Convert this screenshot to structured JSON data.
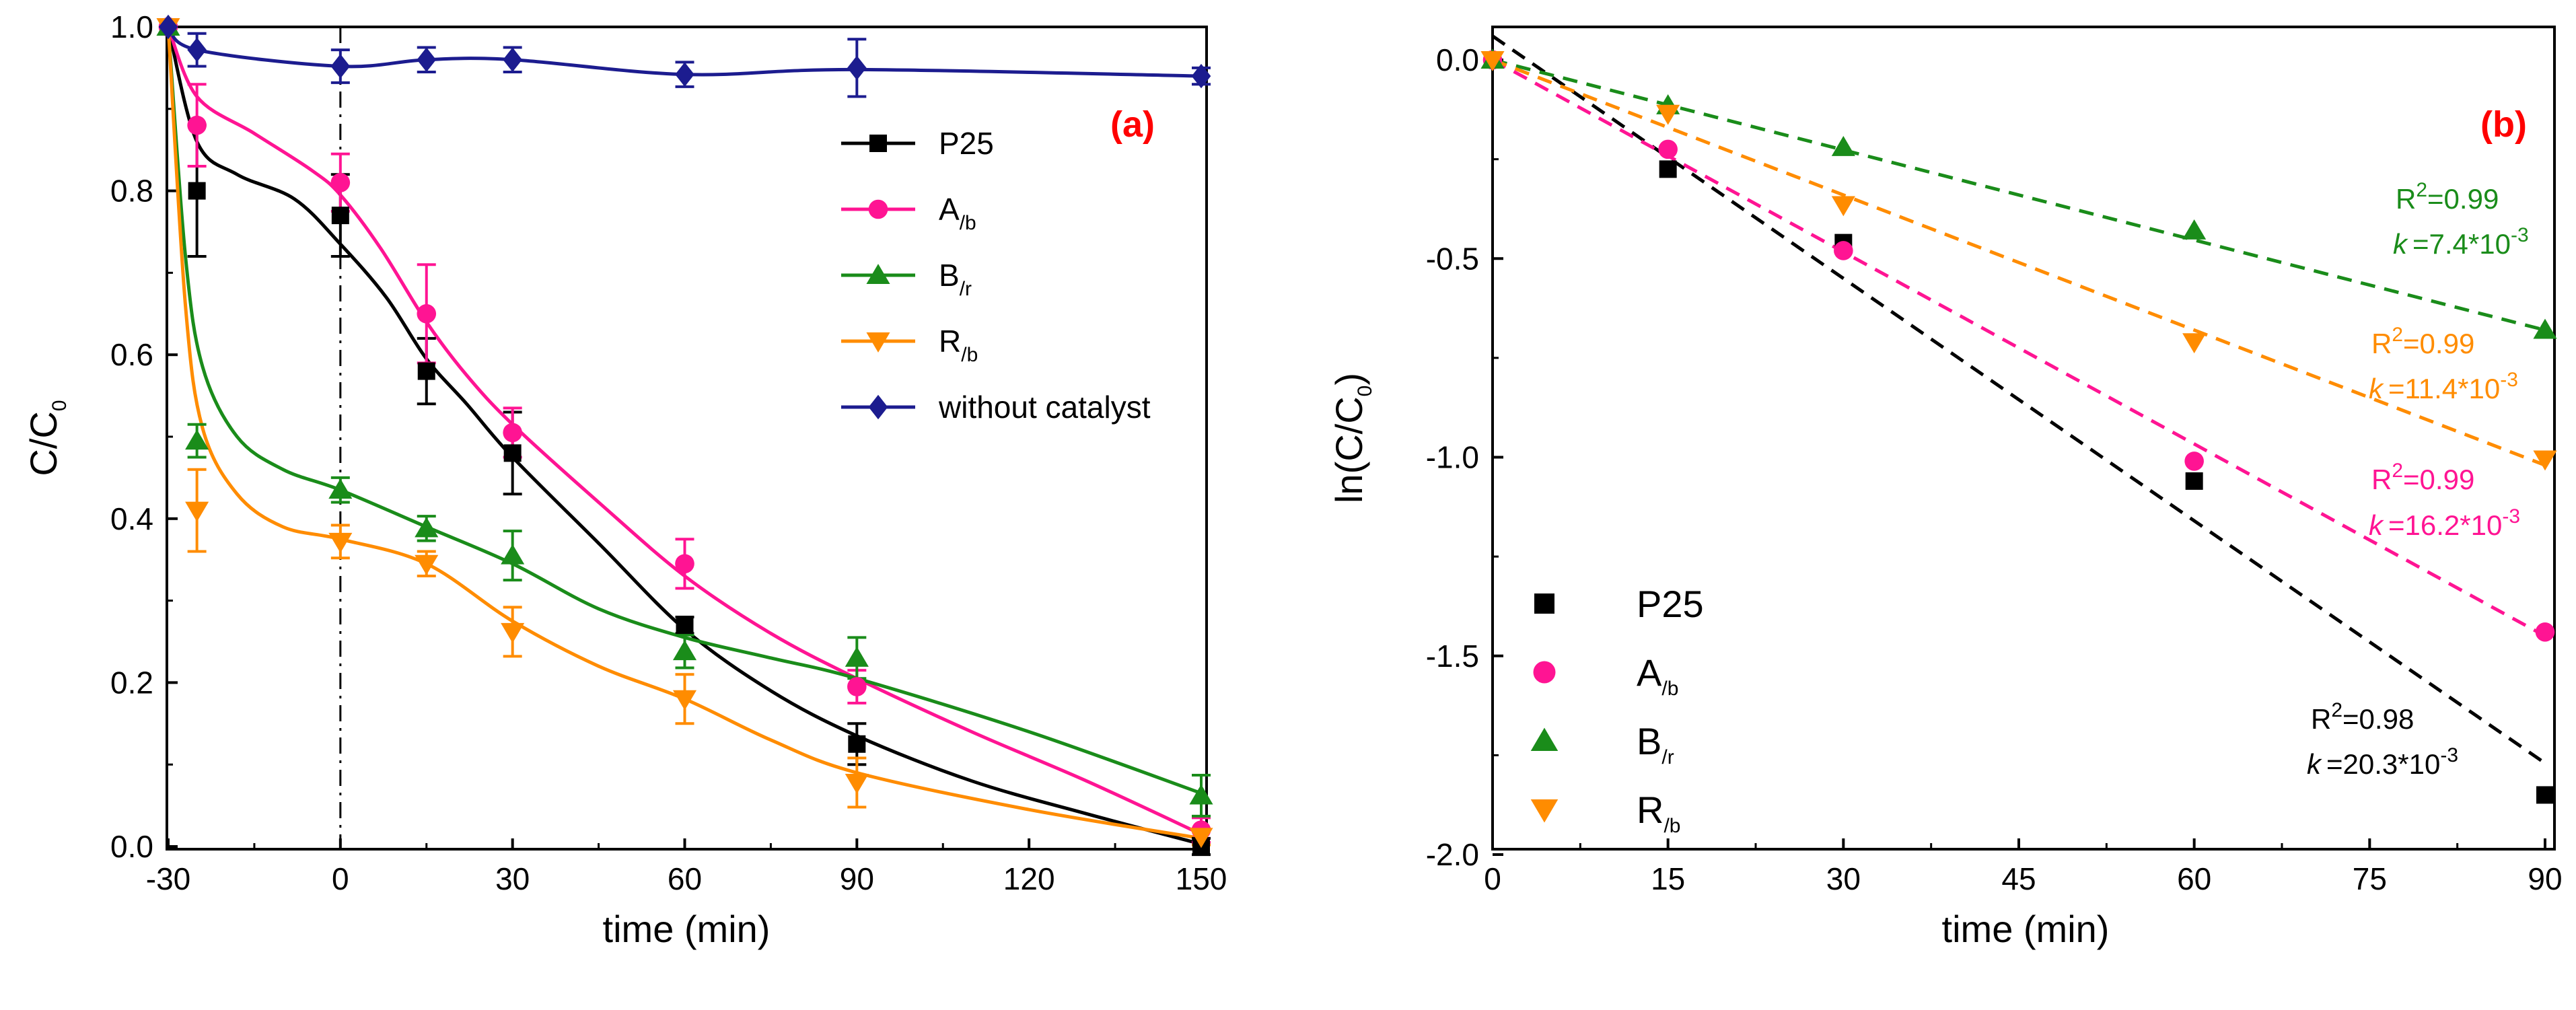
{
  "chart_data": [
    {
      "panel": "a",
      "type": "line",
      "tag": "(a)",
      "xlabel": "time (min)",
      "ylabel": {
        "main": "C/C",
        "sub": "0"
      },
      "xlim": [
        -30,
        150
      ],
      "ylim": [
        0,
        1
      ],
      "xticks": [
        -30,
        0,
        30,
        60,
        90,
        120,
        150
      ],
      "xtick_labels": [
        "-30",
        "0",
        "30",
        "60",
        "90",
        "120",
        "150"
      ],
      "yticks": [
        0,
        0.2,
        0.4,
        0.6,
        0.8,
        1.0
      ],
      "ytick_labels": [
        "0.0",
        "0.2",
        "0.4",
        "0.6",
        "0.8",
        "1.0"
      ],
      "dark_phase_line_x": 0,
      "series": [
        {
          "name": "P25",
          "name_sub": "",
          "color": "#000000",
          "marker": "square",
          "points": [
            {
              "x": -30,
              "y": 1.0
            },
            {
              "x": -25,
              "y": 0.8,
              "err": 0.08
            },
            {
              "x": 0,
              "y": 0.77,
              "err": 0.05
            },
            {
              "x": 15,
              "y": 0.58,
              "err": 0.04
            },
            {
              "x": 30,
              "y": 0.48,
              "err": 0.05
            },
            {
              "x": 60,
              "y": 0.27,
              "err": 0.01
            },
            {
              "x": 90,
              "y": 0.125,
              "err": 0.025
            },
            {
              "x": 150,
              "y": 0.0,
              "err": 0.01
            }
          ],
          "curve": [
            {
              "x": -30,
              "y": 1.0
            },
            {
              "x": -25,
              "y": 0.86
            },
            {
              "x": -18,
              "y": 0.82
            },
            {
              "x": -8,
              "y": 0.79
            },
            {
              "x": 0,
              "y": 0.735
            },
            {
              "x": 8,
              "y": 0.67
            },
            {
              "x": 15,
              "y": 0.595
            },
            {
              "x": 22,
              "y": 0.54
            },
            {
              "x": 30,
              "y": 0.475
            },
            {
              "x": 45,
              "y": 0.37
            },
            {
              "x": 60,
              "y": 0.265
            },
            {
              "x": 75,
              "y": 0.19
            },
            {
              "x": 90,
              "y": 0.135
            },
            {
              "x": 110,
              "y": 0.08
            },
            {
              "x": 130,
              "y": 0.04
            },
            {
              "x": 150,
              "y": 0.003
            }
          ]
        },
        {
          "name": "A",
          "name_sub": "/b",
          "color": "#ff1493",
          "marker": "circle",
          "points": [
            {
              "x": -30,
              "y": 1.0
            },
            {
              "x": -25,
              "y": 0.88,
              "err": 0.05
            },
            {
              "x": 0,
              "y": 0.81,
              "err": 0.035
            },
            {
              "x": 15,
              "y": 0.65,
              "err": 0.06
            },
            {
              "x": 30,
              "y": 0.505,
              "err": 0.03
            },
            {
              "x": 60,
              "y": 0.345,
              "err": 0.03
            },
            {
              "x": 90,
              "y": 0.195,
              "err": 0.02
            },
            {
              "x": 150,
              "y": 0.02,
              "err": 0.015
            }
          ],
          "curve": [
            {
              "x": -30,
              "y": 1.0
            },
            {
              "x": -25,
              "y": 0.915
            },
            {
              "x": -15,
              "y": 0.87
            },
            {
              "x": -5,
              "y": 0.825
            },
            {
              "x": 0,
              "y": 0.795
            },
            {
              "x": 7,
              "y": 0.73
            },
            {
              "x": 15,
              "y": 0.64
            },
            {
              "x": 22,
              "y": 0.575
            },
            {
              "x": 30,
              "y": 0.515
            },
            {
              "x": 45,
              "y": 0.42
            },
            {
              "x": 60,
              "y": 0.33
            },
            {
              "x": 75,
              "y": 0.26
            },
            {
              "x": 90,
              "y": 0.205
            },
            {
              "x": 110,
              "y": 0.14
            },
            {
              "x": 130,
              "y": 0.08
            },
            {
              "x": 150,
              "y": 0.015
            }
          ]
        },
        {
          "name": "B",
          "name_sub": "/r",
          "color": "#1a8c1a",
          "marker": "triangle-up",
          "points": [
            {
              "x": -30,
              "y": 1.0
            },
            {
              "x": -25,
              "y": 0.495,
              "err": 0.02
            },
            {
              "x": 0,
              "y": 0.435,
              "err": 0.015
            },
            {
              "x": 15,
              "y": 0.388,
              "err": 0.015
            },
            {
              "x": 30,
              "y": 0.355,
              "err": 0.03
            },
            {
              "x": 60,
              "y": 0.238,
              "err": 0.02
            },
            {
              "x": 90,
              "y": 0.23,
              "err": 0.025
            },
            {
              "x": 150,
              "y": 0.062,
              "err": 0.025
            }
          ],
          "curve": [
            {
              "x": -30,
              "y": 1.0
            },
            {
              "x": -27,
              "y": 0.72
            },
            {
              "x": -24,
              "y": 0.585
            },
            {
              "x": -18,
              "y": 0.5
            },
            {
              "x": -10,
              "y": 0.46
            },
            {
              "x": 0,
              "y": 0.435
            },
            {
              "x": 15,
              "y": 0.39
            },
            {
              "x": 30,
              "y": 0.345
            },
            {
              "x": 45,
              "y": 0.29
            },
            {
              "x": 60,
              "y": 0.255
            },
            {
              "x": 75,
              "y": 0.23
            },
            {
              "x": 90,
              "y": 0.205
            },
            {
              "x": 120,
              "y": 0.14
            },
            {
              "x": 150,
              "y": 0.065
            }
          ]
        },
        {
          "name": "R",
          "name_sub": "/b",
          "color": "#ff8c00",
          "marker": "triangle-down",
          "points": [
            {
              "x": -30,
              "y": 1.0
            },
            {
              "x": -25,
              "y": 0.41,
              "err": 0.05
            },
            {
              "x": 0,
              "y": 0.372,
              "err": 0.02
            },
            {
              "x": 15,
              "y": 0.345,
              "err": 0.015
            },
            {
              "x": 30,
              "y": 0.262,
              "err": 0.03
            },
            {
              "x": 60,
              "y": 0.18,
              "err": 0.03
            },
            {
              "x": 90,
              "y": 0.078,
              "err": 0.03
            },
            {
              "x": 150,
              "y": 0.012,
              "err": 0.01
            }
          ],
          "curve": [
            {
              "x": -30,
              "y": 1.0
            },
            {
              "x": -27,
              "y": 0.66
            },
            {
              "x": -24,
              "y": 0.51
            },
            {
              "x": -18,
              "y": 0.43
            },
            {
              "x": -10,
              "y": 0.39
            },
            {
              "x": 0,
              "y": 0.375
            },
            {
              "x": 15,
              "y": 0.345
            },
            {
              "x": 30,
              "y": 0.275
            },
            {
              "x": 45,
              "y": 0.22
            },
            {
              "x": 60,
              "y": 0.18
            },
            {
              "x": 75,
              "y": 0.13
            },
            {
              "x": 90,
              "y": 0.09
            },
            {
              "x": 120,
              "y": 0.045
            },
            {
              "x": 150,
              "y": 0.01
            }
          ]
        },
        {
          "name": "without catalyst",
          "name_sub": "",
          "color": "#1c1c8f",
          "marker": "diamond",
          "points": [
            {
              "x": -30,
              "y": 1.0
            },
            {
              "x": -25,
              "y": 0.972,
              "err": 0.02
            },
            {
              "x": 0,
              "y": 0.952,
              "err": 0.02
            },
            {
              "x": 15,
              "y": 0.96,
              "err": 0.015
            },
            {
              "x": 30,
              "y": 0.96,
              "err": 0.015
            },
            {
              "x": 60,
              "y": 0.942,
              "err": 0.015
            },
            {
              "x": 90,
              "y": 0.95,
              "err": 0.035
            },
            {
              "x": 150,
              "y": 0.94,
              "err": 0.01
            }
          ],
          "curve": [
            {
              "x": -30,
              "y": 1.0
            },
            {
              "x": -25,
              "y": 0.972
            },
            {
              "x": 0,
              "y": 0.952
            },
            {
              "x": 15,
              "y": 0.96
            },
            {
              "x": 30,
              "y": 0.96
            },
            {
              "x": 60,
              "y": 0.942
            },
            {
              "x": 90,
              "y": 0.948
            },
            {
              "x": 150,
              "y": 0.94
            }
          ]
        }
      ]
    },
    {
      "panel": "b",
      "type": "scatter",
      "tag": "(b)",
      "xlabel": "time (min)",
      "ylabel": {
        "main": "ln(C/C",
        "sub": "0",
        "end": ")"
      },
      "xlim": [
        0,
        90
      ],
      "ylim": [
        -2.0,
        0.08
      ],
      "xticks": [
        0,
        15,
        30,
        45,
        60,
        75,
        90
      ],
      "xtick_labels": [
        "0",
        "15",
        "30",
        "45",
        "60",
        "75",
        "90"
      ],
      "yticks": [
        0,
        -0.5,
        -1.0,
        -1.5,
        -2.0
      ],
      "ytick_labels": [
        "0.0",
        "-0.5",
        "-1.0",
        "-1.5",
        "-2.0"
      ],
      "series": [
        {
          "name": "P25",
          "name_sub": "",
          "color": "#000000",
          "marker": "square",
          "x": [
            0,
            15,
            30,
            60,
            90
          ],
          "y": [
            0,
            -0.275,
            -0.46,
            -1.06,
            -1.85
          ],
          "fit": {
            "start": [
              0,
              0.06
            ],
            "end": [
              90,
              -1.77
            ]
          },
          "r2_label": "R",
          "r2_value": "=0.98",
          "k_value": "=20.3*10",
          "k_exp": "-3"
        },
        {
          "name": "A",
          "name_sub": "/b",
          "color": "#ff1493",
          "marker": "circle",
          "x": [
            0,
            15,
            30,
            60,
            90
          ],
          "y": [
            0,
            -0.225,
            -0.48,
            -1.01,
            -1.44
          ],
          "fit": {
            "start": [
              0,
              0.0
            ],
            "end": [
              90,
              -1.45
            ]
          },
          "r2_label": "R",
          "r2_value": "=0.99",
          "k_value": "=16.2*10",
          "k_exp": "-3"
        },
        {
          "name": "B",
          "name_sub": "/r",
          "color": "#1a8c1a",
          "marker": "triangle-up",
          "x": [
            0,
            15,
            30,
            60,
            90
          ],
          "y": [
            0,
            -0.115,
            -0.22,
            -0.43,
            -0.68
          ],
          "fit": {
            "start": [
              0,
              0.0
            ],
            "end": [
              90,
              -0.68
            ]
          },
          "r2_label": "R",
          "r2_value": "=0.99",
          "k_value": "=7.4*10",
          "k_exp": "-3"
        },
        {
          "name": "R",
          "name_sub": "/b",
          "color": "#ff8c00",
          "marker": "triangle-down",
          "x": [
            0,
            15,
            30,
            60,
            90
          ],
          "y": [
            0,
            -0.135,
            -0.365,
            -0.71,
            -1.005
          ],
          "fit": {
            "start": [
              0,
              0.0
            ],
            "end": [
              90,
              -1.02
            ]
          },
          "r2_label": "R",
          "r2_value": "=0.99",
          "k_value": "=11.4*10",
          "k_exp": "-3"
        }
      ],
      "annotations": {
        "r2_sup": "2",
        "k_symbol": "k"
      }
    }
  ]
}
